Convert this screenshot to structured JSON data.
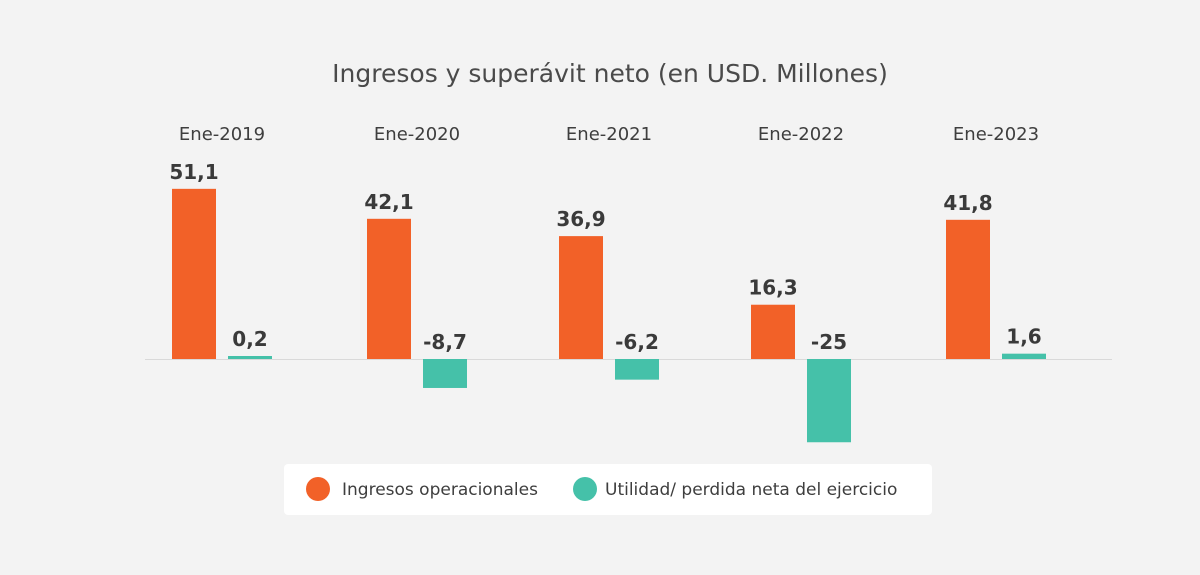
{
  "chart_data": {
    "type": "bar",
    "title": "Ingresos y superávit neto (en USD. Millones)",
    "categories": [
      "Ene-2019",
      "Ene-2020",
      "Ene-2021",
      "Ene-2022",
      "Ene-2023"
    ],
    "series": [
      {
        "name": "Ingresos operacionales",
        "color": "#f26128",
        "values": [
          51.1,
          42.1,
          36.9,
          16.3,
          41.8
        ],
        "labels": [
          "51,1",
          "42,1",
          "36,9",
          "16,3",
          "41,8"
        ]
      },
      {
        "name": "Utilidad/ perdida neta del ejercicio",
        "color": "#45c1a9",
        "values": [
          0.2,
          -8.7,
          -6.2,
          -25,
          1.6
        ],
        "labels": [
          "0,2",
          "-8,7",
          "-6,2",
          "-25",
          "1,6"
        ]
      }
    ],
    "ylim": [
      -25,
      55
    ],
    "grid": false,
    "legend_position": "bottom"
  }
}
